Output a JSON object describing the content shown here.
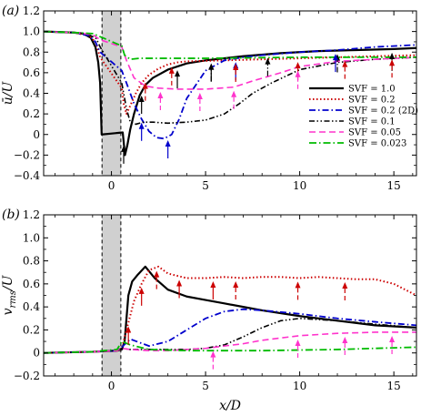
{
  "chart_data": [
    {
      "type": "line",
      "panel_label": "(a)",
      "ylabel": "ū/U",
      "xlabel": "",
      "xlim": [
        -3.6,
        16.2
      ],
      "ylim": [
        -0.4,
        1.2
      ],
      "xticks": [
        0,
        5,
        10,
        15
      ],
      "yticks": [
        -0.4,
        -0.2,
        0,
        0.2,
        0.4,
        0.6,
        0.8,
        1.0,
        1.2
      ],
      "ytick_labels": [
        "−0.4",
        "−0.2",
        "0",
        "0.2",
        "0.4",
        "0.6",
        "0.8",
        "1.0",
        "1.2"
      ],
      "obstacle_x": [
        -0.5,
        0.5
      ],
      "legend": {
        "position": "right",
        "entries": [
          "SVF = 1.0",
          "SVF = 0.2",
          "SVF = 0.2 (2D)",
          "SVF = 0.1",
          "SVF = 0.05",
          "SVF = 0.023"
        ]
      },
      "series": [
        {
          "name": "SVF = 1.0",
          "color": "#000000",
          "dash": "",
          "width": 2.2,
          "x": [
            -3.6,
            -2,
            -1.5,
            -1.1,
            -0.85,
            -0.7,
            -0.6,
            -0.52,
            0.6,
            0.72,
            0.85,
            1.0,
            1.2,
            1.5,
            1.8,
            2.2,
            3,
            4,
            5,
            7,
            9,
            11,
            13,
            15,
            16.2
          ],
          "y": [
            1.0,
            0.99,
            0.98,
            0.94,
            0.85,
            0.7,
            0.5,
            0.0,
            0.02,
            -0.2,
            -0.1,
            0.05,
            0.2,
            0.38,
            0.48,
            0.55,
            0.63,
            0.69,
            0.72,
            0.76,
            0.79,
            0.81,
            0.82,
            0.83,
            0.84
          ]
        },
        {
          "name": "SVF = 0.2",
          "color": "#cc0000",
          "dash": "1.5,2.5",
          "width": 2,
          "x": [
            -3.6,
            -2,
            -1.2,
            -0.85,
            -0.6,
            0.55,
            0.65,
            0.8,
            1.0,
            1.3,
            1.6,
            2.0,
            2.5,
            3.0,
            3.5,
            4.0,
            6,
            8,
            10,
            12,
            14,
            16.2
          ],
          "y": [
            1.0,
            0.99,
            0.96,
            0.9,
            0.75,
            0.45,
            0.3,
            0.2,
            0.28,
            0.4,
            0.5,
            0.58,
            0.64,
            0.68,
            0.7,
            0.71,
            0.72,
            0.73,
            0.74,
            0.75,
            0.76,
            0.77
          ]
        },
        {
          "name": "SVF = 0.2 (2D)",
          "color": "#0000cc",
          "dash": "7,3,1.5,3",
          "width": 1.8,
          "x": [
            -3.6,
            -2,
            -1.2,
            -0.85,
            -0.6,
            0.55,
            0.8,
            1.2,
            1.6,
            2.0,
            2.4,
            2.8,
            3.2,
            3.6,
            4.0,
            5,
            6,
            7,
            8,
            10,
            12,
            14,
            16.2
          ],
          "y": [
            1.0,
            0.99,
            0.96,
            0.9,
            0.8,
            0.62,
            0.5,
            0.3,
            0.15,
            0.03,
            -0.03,
            -0.04,
            0.0,
            0.15,
            0.35,
            0.62,
            0.72,
            0.75,
            0.77,
            0.8,
            0.82,
            0.85,
            0.87
          ]
        },
        {
          "name": "SVF = 0.1",
          "color": "#000000",
          "dash": "6,2.5,1.5,2.5,1.5,2.5",
          "width": 1.6,
          "x": [
            -3.6,
            -2,
            -1.2,
            -0.8,
            -0.6,
            0.55,
            0.8,
            1.0,
            1.3,
            1.7,
            2.2,
            3,
            4,
            5,
            6,
            6.8,
            7.5,
            8.5,
            10,
            12,
            14,
            16.2
          ],
          "y": [
            1.0,
            0.99,
            0.97,
            0.93,
            0.85,
            0.5,
            0.25,
            0.12,
            0.1,
            0.12,
            0.12,
            0.11,
            0.12,
            0.14,
            0.2,
            0.3,
            0.4,
            0.5,
            0.63,
            0.7,
            0.73,
            0.75
          ]
        },
        {
          "name": "SVF = 0.05",
          "color": "#ff33cc",
          "dash": "7,4",
          "width": 1.6,
          "x": [
            -3.6,
            -2,
            -1.0,
            -0.6,
            0.55,
            0.8,
            1.2,
            1.8,
            2.5,
            3.5,
            5,
            6.5,
            7.5,
            9,
            10,
            12,
            14,
            16.2
          ],
          "y": [
            1.0,
            0.99,
            0.97,
            0.92,
            0.85,
            0.72,
            0.55,
            0.47,
            0.45,
            0.44,
            0.44,
            0.46,
            0.52,
            0.6,
            0.66,
            0.71,
            0.73,
            0.75
          ]
        },
        {
          "name": "SVF = 0.023",
          "color": "#00bb00",
          "dash": "8,3,1.5,3",
          "width": 1.8,
          "x": [
            -3.6,
            -2,
            -1.0,
            -0.6,
            0.55,
            0.7,
            1.0,
            1.5,
            2.5,
            5,
            10,
            16.2
          ],
          "y": [
            1.0,
            0.99,
            0.98,
            0.95,
            0.86,
            0.77,
            0.73,
            0.74,
            0.74,
            0.74,
            0.75,
            0.75
          ]
        }
      ],
      "arrows": [
        {
          "color": "#000000",
          "style": "solid",
          "x": [
            0.65,
            1.6,
            3.5,
            5.3
          ]
        },
        {
          "color": "#000000",
          "style": "dashdot",
          "x": [
            5.3,
            8.3,
            12.0,
            14.9
          ]
        },
        {
          "color": "#0000cc",
          "style": "solid",
          "x": [
            1.6,
            3.0,
            6.6,
            11.9
          ]
        },
        {
          "color": "#cc0000",
          "style": "dashed",
          "x": [
            1.8,
            3.2,
            6.6,
            9.9,
            12.4,
            14.9
          ]
        },
        {
          "color": "#ff33cc",
          "style": "dashed",
          "x": [
            2.6,
            4.7,
            6.5,
            9.9
          ]
        }
      ]
    },
    {
      "type": "line",
      "panel_label": "(b)",
      "ylabel": "v_rms/U",
      "ylabel_main": "v",
      "ylabel_sub": "rms",
      "ylabel_rest": "/U",
      "xlabel": "x/D",
      "xlim": [
        -3.6,
        16.2
      ],
      "ylim": [
        -0.2,
        1.2
      ],
      "xticks": [
        0,
        5,
        10,
        15
      ],
      "yticks": [
        -0.2,
        0,
        0.2,
        0.4,
        0.6,
        0.8,
        1.0,
        1.2
      ],
      "ytick_labels": [
        "−0.2",
        "0",
        "0.2",
        "0.4",
        "0.6",
        "0.8",
        "1.0",
        "1.2"
      ],
      "obstacle_x": [
        -0.5,
        0.5
      ],
      "series": [
        {
          "name": "SVF = 1.0",
          "color": "#000000",
          "dash": "",
          "width": 2.2,
          "x": [
            -3.6,
            -1,
            0.3,
            0.55,
            0.7,
            0.9,
            1.1,
            1.4,
            1.8,
            2.3,
            3,
            4,
            5,
            6,
            7,
            8,
            10,
            12,
            14,
            16.2
          ],
          "y": [
            0.0,
            0.01,
            0.02,
            0.03,
            0.1,
            0.5,
            0.62,
            0.68,
            0.75,
            0.65,
            0.55,
            0.49,
            0.46,
            0.43,
            0.4,
            0.37,
            0.32,
            0.28,
            0.24,
            0.22
          ]
        },
        {
          "name": "SVF = 0.2",
          "color": "#cc0000",
          "dash": "1.5,2.5",
          "width": 2,
          "x": [
            -3.6,
            -1,
            0.3,
            0.55,
            0.8,
            1.2,
            1.6,
            2.0,
            2.5,
            3.0,
            4,
            5,
            6,
            7,
            8,
            9,
            10,
            11,
            12,
            13,
            14,
            15,
            16.2
          ],
          "y": [
            0.0,
            0.01,
            0.02,
            0.04,
            0.2,
            0.45,
            0.6,
            0.72,
            0.75,
            0.69,
            0.65,
            0.65,
            0.66,
            0.65,
            0.66,
            0.66,
            0.65,
            0.66,
            0.65,
            0.64,
            0.64,
            0.6,
            0.5
          ]
        },
        {
          "name": "SVF = 0.2 (2D)",
          "color": "#0000cc",
          "dash": "7,3,1.5,3",
          "width": 1.8,
          "x": [
            -3.6,
            -1,
            0.3,
            0.55,
            1.0,
            1.5,
            2.0,
            3.0,
            4.0,
            5.0,
            6.0,
            7.0,
            8.0,
            10,
            12,
            14,
            16.2
          ],
          "y": [
            0.0,
            0.01,
            0.02,
            0.05,
            0.12,
            0.09,
            0.06,
            0.1,
            0.2,
            0.3,
            0.36,
            0.38,
            0.37,
            0.34,
            0.3,
            0.27,
            0.24
          ]
        },
        {
          "name": "SVF = 0.1",
          "color": "#000000",
          "dash": "6,2.5,1.5,2.5,1.5,2.5",
          "width": 1.6,
          "x": [
            -3.6,
            -1,
            0.3,
            0.55,
            1.0,
            2.0,
            3.0,
            4.0,
            5.0,
            6.0,
            7.0,
            8.0,
            9.0,
            10,
            12,
            14,
            16.2
          ],
          "y": [
            0.0,
            0.01,
            0.02,
            0.04,
            0.03,
            0.03,
            0.03,
            0.03,
            0.04,
            0.07,
            0.14,
            0.22,
            0.28,
            0.3,
            0.28,
            0.25,
            0.22
          ]
        },
        {
          "name": "SVF = 0.05",
          "color": "#ff33cc",
          "dash": "7,4",
          "width": 1.6,
          "x": [
            -3.6,
            -1,
            0.3,
            0.55,
            1.0,
            2.0,
            3.0,
            4.0,
            5.0,
            6.0,
            7.0,
            8.0,
            10,
            12,
            14,
            16.2
          ],
          "y": [
            0.0,
            0.01,
            0.02,
            0.04,
            0.03,
            0.02,
            0.02,
            0.03,
            0.04,
            0.06,
            0.08,
            0.11,
            0.15,
            0.17,
            0.18,
            0.18
          ]
        },
        {
          "name": "SVF = 0.023",
          "color": "#00bb00",
          "dash": "8,3,1.5,3",
          "width": 1.8,
          "x": [
            -3.6,
            -1,
            0.3,
            0.55,
            1.0,
            2.0,
            4.0,
            8.0,
            12,
            16.2
          ],
          "y": [
            0.0,
            0.01,
            0.03,
            0.1,
            0.07,
            0.03,
            0.02,
            0.02,
            0.03,
            0.05
          ]
        }
      ],
      "arrows": [
        {
          "color": "#cc0000",
          "style": "solid",
          "x": [
            0.9,
            1.6,
            3.6,
            5.4
          ]
        },
        {
          "color": "#cc0000",
          "style": "dashed",
          "x": [
            2.4,
            6.6,
            9.9,
            12.4
          ]
        },
        {
          "color": "#ff33cc",
          "style": "dashed",
          "x": [
            5.4,
            9.9,
            12.4,
            14.9
          ]
        }
      ]
    }
  ]
}
